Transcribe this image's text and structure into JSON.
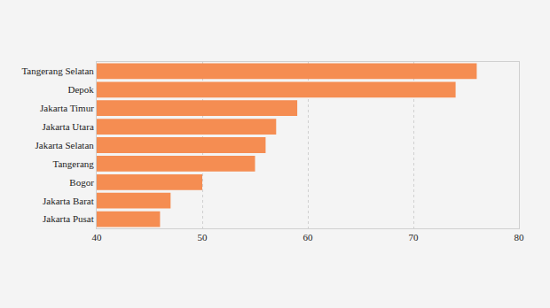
{
  "chart_data": {
    "type": "bar",
    "orientation": "horizontal",
    "categories": [
      "Tangerang Selatan",
      "Depok",
      "Jakarta Timur",
      "Jakarta Utara",
      "Jakarta Selatan",
      "Tangerang",
      "Bogor",
      "Jakarta Barat",
      "Jakarta Pusat"
    ],
    "values": [
      76,
      74,
      59,
      57,
      56,
      55,
      50,
      47,
      46
    ],
    "color": "#f58d52",
    "xlim": [
      40,
      80
    ],
    "xticks": [
      40,
      50,
      60,
      70,
      80
    ],
    "grid": true
  }
}
